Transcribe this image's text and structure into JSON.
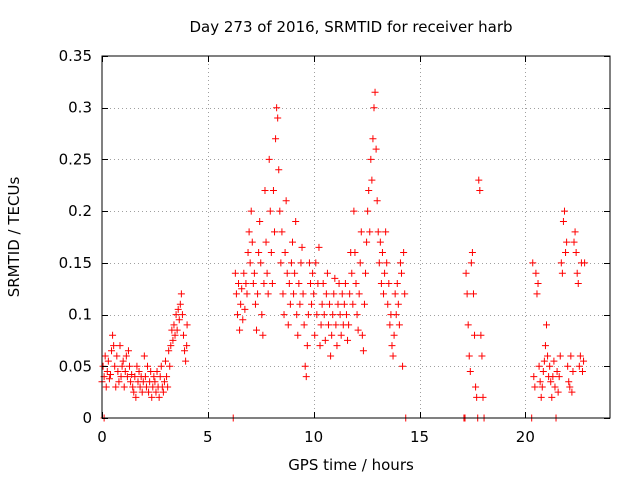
{
  "chart_data": {
    "type": "scatter",
    "title": "Day 273 of 2016, SRMTID for receiver harb",
    "xlabel": "GPS time / hours",
    "ylabel": "SRMTID / TECUs",
    "xlim": [
      0,
      24
    ],
    "ylim": [
      0,
      0.35
    ],
    "xticks": [
      0,
      5,
      10,
      15,
      20
    ],
    "xtick_labels": [
      "0",
      "5",
      "10",
      "15",
      "20"
    ],
    "yticks": [
      0,
      0.05,
      0.1,
      0.15,
      0.2,
      0.25,
      0.3,
      0.35
    ],
    "ytick_labels": [
      "0",
      "0.05",
      "0.1",
      "0.15",
      "0.2",
      "0.25",
      "0.3",
      "0.35"
    ],
    "grid": true,
    "marker": "plus",
    "color": "#ff0000",
    "series": [
      {
        "name": "SRMTID",
        "points": [
          [
            0.0,
            0.035
          ],
          [
            0.05,
            0.05
          ],
          [
            0.1,
            0.04
          ],
          [
            0.15,
            0.06
          ],
          [
            0.2,
            0.03
          ],
          [
            0.25,
            0.045
          ],
          [
            0.3,
            0.055
          ],
          [
            0.35,
            0.038
          ],
          [
            0.4,
            0.042
          ],
          [
            0.45,
            0.065
          ],
          [
            0.5,
            0.08
          ],
          [
            0.55,
            0.07
          ],
          [
            0.6,
            0.05
          ],
          [
            0.65,
            0.03
          ],
          [
            0.7,
            0.06
          ],
          [
            0.75,
            0.045
          ],
          [
            0.8,
            0.035
          ],
          [
            0.85,
            0.07
          ],
          [
            0.9,
            0.04
          ],
          [
            0.95,
            0.05
          ],
          [
            1.0,
            0.055
          ],
          [
            1.05,
            0.03
          ],
          [
            1.1,
            0.045
          ],
          [
            1.15,
            0.06
          ],
          [
            1.2,
            0.04
          ],
          [
            1.25,
            0.065
          ],
          [
            1.3,
            0.05
          ],
          [
            1.35,
            0.035
          ],
          [
            1.4,
            0.042
          ],
          [
            1.45,
            0.03
          ],
          [
            1.5,
            0.025
          ],
          [
            1.55,
            0.04
          ],
          [
            1.6,
            0.02
          ],
          [
            1.65,
            0.05
          ],
          [
            1.7,
            0.035
          ],
          [
            1.75,
            0.045
          ],
          [
            1.8,
            0.03
          ],
          [
            1.85,
            0.04
          ],
          [
            1.9,
            0.025
          ],
          [
            1.95,
            0.035
          ],
          [
            2.0,
            0.06
          ],
          [
            2.05,
            0.04
          ],
          [
            2.1,
            0.03
          ],
          [
            2.15,
            0.05
          ],
          [
            2.2,
            0.025
          ],
          [
            2.25,
            0.035
          ],
          [
            2.3,
            0.045
          ],
          [
            2.35,
            0.02
          ],
          [
            2.4,
            0.03
          ],
          [
            2.45,
            0.04
          ],
          [
            2.5,
            0.035
          ],
          [
            2.55,
            0.025
          ],
          [
            2.6,
            0.045
          ],
          [
            2.65,
            0.03
          ],
          [
            2.7,
            0.02
          ],
          [
            2.75,
            0.04
          ],
          [
            2.8,
            0.05
          ],
          [
            2.85,
            0.03
          ],
          [
            2.9,
            0.025
          ],
          [
            2.95,
            0.035
          ],
          [
            3.0,
            0.055
          ],
          [
            3.05,
            0.04
          ],
          [
            3.1,
            0.03
          ],
          [
            3.15,
            0.065
          ],
          [
            3.2,
            0.05
          ],
          [
            3.25,
            0.07
          ],
          [
            3.3,
            0.085
          ],
          [
            3.35,
            0.075
          ],
          [
            3.4,
            0.09
          ],
          [
            3.45,
            0.08
          ],
          [
            3.5,
            0.1
          ],
          [
            3.55,
            0.085
          ],
          [
            3.6,
            0.105
          ],
          [
            3.65,
            0.095
          ],
          [
            3.7,
            0.11
          ],
          [
            3.75,
            0.12
          ],
          [
            3.8,
            0.1
          ],
          [
            3.85,
            0.08
          ],
          [
            3.9,
            0.065
          ],
          [
            3.95,
            0.055
          ],
          [
            4.0,
            0.07
          ],
          [
            4.02,
            0.09
          ],
          [
            0.1,
            0.0
          ],
          [
            6.2,
            0.0
          ],
          [
            6.3,
            0.14
          ],
          [
            6.35,
            0.12
          ],
          [
            6.4,
            0.1
          ],
          [
            6.45,
            0.13
          ],
          [
            6.5,
            0.085
          ],
          [
            6.55,
            0.11
          ],
          [
            6.6,
            0.125
          ],
          [
            6.65,
            0.095
          ],
          [
            6.7,
            0.14
          ],
          [
            6.75,
            0.105
          ],
          [
            6.8,
            0.13
          ],
          [
            6.85,
            0.12
          ],
          [
            6.9,
            0.16
          ],
          [
            6.95,
            0.18
          ],
          [
            7.0,
            0.15
          ],
          [
            7.05,
            0.2
          ],
          [
            7.1,
            0.17
          ],
          [
            7.15,
            0.13
          ],
          [
            7.2,
            0.14
          ],
          [
            7.25,
            0.11
          ],
          [
            7.3,
            0.085
          ],
          [
            7.35,
            0.12
          ],
          [
            7.4,
            0.16
          ],
          [
            7.45,
            0.19
          ],
          [
            7.5,
            0.15
          ],
          [
            7.55,
            0.1
          ],
          [
            7.6,
            0.08
          ],
          [
            7.65,
            0.13
          ],
          [
            7.7,
            0.22
          ],
          [
            7.75,
            0.17
          ],
          [
            7.8,
            0.14
          ],
          [
            7.85,
            0.12
          ],
          [
            7.9,
            0.25
          ],
          [
            7.95,
            0.2
          ],
          [
            8.0,
            0.16
          ],
          [
            8.05,
            0.13
          ],
          [
            8.1,
            0.22
          ],
          [
            8.15,
            0.18
          ],
          [
            8.2,
            0.27
          ],
          [
            8.25,
            0.3
          ],
          [
            8.3,
            0.29
          ],
          [
            8.35,
            0.24
          ],
          [
            8.4,
            0.2
          ],
          [
            8.45,
            0.15
          ],
          [
            8.5,
            0.18
          ],
          [
            8.55,
            0.12
          ],
          [
            8.6,
            0.1
          ],
          [
            8.65,
            0.16
          ],
          [
            8.7,
            0.21
          ],
          [
            8.75,
            0.14
          ],
          [
            8.8,
            0.09
          ],
          [
            8.85,
            0.13
          ],
          [
            8.9,
            0.11
          ],
          [
            8.95,
            0.15
          ],
          [
            9.0,
            0.17
          ],
          [
            9.05,
            0.12
          ],
          [
            9.1,
            0.14
          ],
          [
            9.15,
            0.19
          ],
          [
            9.2,
            0.1
          ],
          [
            9.25,
            0.08
          ],
          [
            9.3,
            0.13
          ],
          [
            9.35,
            0.11
          ],
          [
            9.4,
            0.15
          ],
          [
            9.45,
            0.165
          ],
          [
            9.5,
            0.12
          ],
          [
            9.55,
            0.09
          ],
          [
            9.6,
            0.05
          ],
          [
            9.65,
            0.04
          ],
          [
            9.7,
            0.07
          ],
          [
            9.75,
            0.1
          ],
          [
            9.8,
            0.15
          ],
          [
            9.85,
            0.13
          ],
          [
            9.9,
            0.11
          ],
          [
            9.95,
            0.14
          ],
          [
            10.0,
            0.12
          ],
          [
            10.05,
            0.08
          ],
          [
            10.1,
            0.15
          ],
          [
            10.15,
            0.1
          ],
          [
            10.2,
            0.13
          ],
          [
            10.25,
            0.165
          ],
          [
            10.3,
            0.07
          ],
          [
            10.35,
            0.09
          ],
          [
            10.4,
            0.11
          ],
          [
            10.45,
            0.13
          ],
          [
            10.5,
            0.1
          ],
          [
            10.55,
            0.075
          ],
          [
            10.6,
            0.12
          ],
          [
            10.65,
            0.14
          ],
          [
            10.7,
            0.09
          ],
          [
            10.75,
            0.11
          ],
          [
            10.8,
            0.06
          ],
          [
            10.85,
            0.08
          ],
          [
            10.9,
            0.1
          ],
          [
            10.95,
            0.12
          ],
          [
            11.0,
            0.135
          ],
          [
            11.05,
            0.09
          ],
          [
            11.1,
            0.07
          ],
          [
            11.15,
            0.11
          ],
          [
            11.2,
            0.13
          ],
          [
            11.25,
            0.1
          ],
          [
            11.3,
            0.08
          ],
          [
            11.35,
            0.12
          ],
          [
            11.4,
            0.09
          ],
          [
            11.45,
            0.11
          ],
          [
            11.5,
            0.13
          ],
          [
            11.55,
            0.1
          ],
          [
            11.6,
            0.075
          ],
          [
            11.65,
            0.09
          ],
          [
            11.7,
            0.12
          ],
          [
            11.75,
            0.16
          ],
          [
            11.8,
            0.14
          ],
          [
            11.85,
            0.11
          ],
          [
            11.9,
            0.2
          ],
          [
            11.95,
            0.16
          ],
          [
            12.0,
            0.13
          ],
          [
            12.05,
            0.1
          ],
          [
            12.1,
            0.085
          ],
          [
            12.15,
            0.12
          ],
          [
            12.2,
            0.15
          ],
          [
            12.25,
            0.18
          ],
          [
            12.3,
            0.08
          ],
          [
            12.35,
            0.065
          ],
          [
            12.4,
            0.11
          ],
          [
            12.45,
            0.14
          ],
          [
            12.5,
            0.17
          ],
          [
            12.55,
            0.2
          ],
          [
            12.6,
            0.22
          ],
          [
            12.65,
            0.18
          ],
          [
            12.7,
            0.25
          ],
          [
            12.75,
            0.23
          ],
          [
            12.8,
            0.27
          ],
          [
            12.85,
            0.3
          ],
          [
            12.9,
            0.315
          ],
          [
            12.95,
            0.26
          ],
          [
            13.0,
            0.21
          ],
          [
            13.05,
            0.18
          ],
          [
            13.1,
            0.15
          ],
          [
            13.15,
            0.17
          ],
          [
            13.2,
            0.13
          ],
          [
            13.25,
            0.16
          ],
          [
            13.3,
            0.12
          ],
          [
            13.35,
            0.14
          ],
          [
            13.4,
            0.18
          ],
          [
            13.45,
            0.15
          ],
          [
            13.5,
            0.11
          ],
          [
            13.55,
            0.13
          ],
          [
            13.6,
            0.09
          ],
          [
            13.65,
            0.1
          ],
          [
            13.7,
            0.07
          ],
          [
            13.75,
            0.06
          ],
          [
            13.8,
            0.08
          ],
          [
            13.85,
            0.12
          ],
          [
            13.9,
            0.1
          ],
          [
            13.95,
            0.13
          ],
          [
            14.0,
            0.11
          ],
          [
            14.05,
            0.09
          ],
          [
            14.1,
            0.15
          ],
          [
            14.15,
            0.14
          ],
          [
            14.2,
            0.05
          ],
          [
            14.25,
            0.16
          ],
          [
            14.3,
            0.12
          ],
          [
            14.35,
            0.0
          ],
          [
            17.1,
            0.0
          ],
          [
            17.15,
            0.0
          ],
          [
            17.2,
            0.14
          ],
          [
            17.25,
            0.12
          ],
          [
            17.3,
            0.09
          ],
          [
            17.35,
            0.06
          ],
          [
            17.4,
            0.045
          ],
          [
            17.45,
            0.15
          ],
          [
            17.5,
            0.16
          ],
          [
            17.55,
            0.12
          ],
          [
            17.6,
            0.08
          ],
          [
            17.65,
            0.03
          ],
          [
            17.7,
            0.02
          ],
          [
            17.75,
            0.0
          ],
          [
            17.8,
            0.23
          ],
          [
            17.85,
            0.22
          ],
          [
            17.9,
            0.08
          ],
          [
            17.95,
            0.06
          ],
          [
            18.0,
            0.02
          ],
          [
            18.05,
            0.0
          ],
          [
            20.3,
            0.0
          ],
          [
            20.35,
            0.15
          ],
          [
            20.4,
            0.04
          ],
          [
            20.45,
            0.03
          ],
          [
            20.5,
            0.14
          ],
          [
            20.55,
            0.12
          ],
          [
            20.6,
            0.13
          ],
          [
            20.65,
            0.05
          ],
          [
            20.7,
            0.035
          ],
          [
            20.75,
            0.02
          ],
          [
            20.8,
            0.03
          ],
          [
            20.85,
            0.045
          ],
          [
            20.9,
            0.055
          ],
          [
            20.95,
            0.07
          ],
          [
            21.0,
            0.09
          ],
          [
            21.05,
            0.06
          ],
          [
            21.1,
            0.04
          ],
          [
            21.15,
            0.05
          ],
          [
            21.2,
            0.035
          ],
          [
            21.25,
            0.02
          ],
          [
            21.3,
            0.04
          ],
          [
            21.35,
            0.055
          ],
          [
            21.4,
            0.03
          ],
          [
            21.45,
            0.0
          ],
          [
            21.5,
            0.045
          ],
          [
            21.55,
            0.025
          ],
          [
            21.6,
            0.04
          ],
          [
            21.65,
            0.06
          ],
          [
            21.7,
            0.15
          ],
          [
            21.75,
            0.14
          ],
          [
            21.8,
            0.19
          ],
          [
            21.85,
            0.2
          ],
          [
            21.9,
            0.16
          ],
          [
            21.95,
            0.17
          ],
          [
            22.0,
            0.05
          ],
          [
            22.05,
            0.035
          ],
          [
            22.1,
            0.03
          ],
          [
            22.15,
            0.06
          ],
          [
            22.2,
            0.025
          ],
          [
            22.25,
            0.045
          ],
          [
            22.3,
            0.17
          ],
          [
            22.35,
            0.18
          ],
          [
            22.4,
            0.16
          ],
          [
            22.45,
            0.14
          ],
          [
            22.5,
            0.13
          ],
          [
            22.55,
            0.05
          ],
          [
            22.6,
            0.06
          ],
          [
            22.65,
            0.15
          ],
          [
            22.7,
            0.045
          ],
          [
            22.75,
            0.055
          ],
          [
            22.8,
            0.15
          ]
        ]
      }
    ]
  }
}
